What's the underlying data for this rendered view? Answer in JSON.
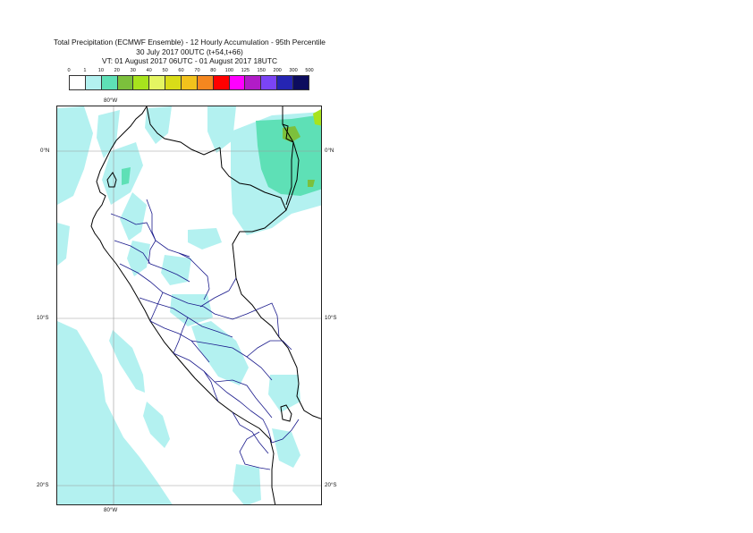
{
  "title": {
    "line1": "Total Precipitation (ECMWF Ensemble) - 12 Hourly Accumulation - 95th Percentile",
    "line2": "30 July 2017 00UTC (t+54,t+66)",
    "line3": "VT: 01 August 2017 06UTC - 01 August 2017 18UTC"
  },
  "legend": {
    "labels": [
      "0",
      "1",
      "10",
      "20",
      "30",
      "40",
      "50",
      "60",
      "70",
      "80",
      "100",
      "125",
      "150",
      "200",
      "300",
      "500"
    ],
    "colors": [
      "#ffffff",
      "#b3f1f0",
      "#5ee0b6",
      "#7cc03c",
      "#a7e31d",
      "#e4f562",
      "#d9dc18",
      "#f2c21c",
      "#f5871f",
      "#ff0000",
      "#ff00ff",
      "#b11cc7",
      "#7b44f5",
      "#2525b3",
      "#0c0c5e"
    ]
  },
  "axes": {
    "lon_top": "80°W",
    "lon_bottom": "80°W",
    "lat_0_left": "0°N",
    "lat_0_right": "0°N",
    "lat_10_left": "10°S",
    "lat_10_right": "10°S",
    "lat_20_left": "20°S",
    "lat_20_right": "20°S"
  },
  "map": {
    "region": "Peru",
    "lon_range": [
      -83.5,
      -67.5
    ],
    "lat_range": [
      -21.0,
      2.7
    ],
    "gridline_color": "#999999",
    "coastline_color": "#000000",
    "border_color": "#1a1a8c"
  }
}
